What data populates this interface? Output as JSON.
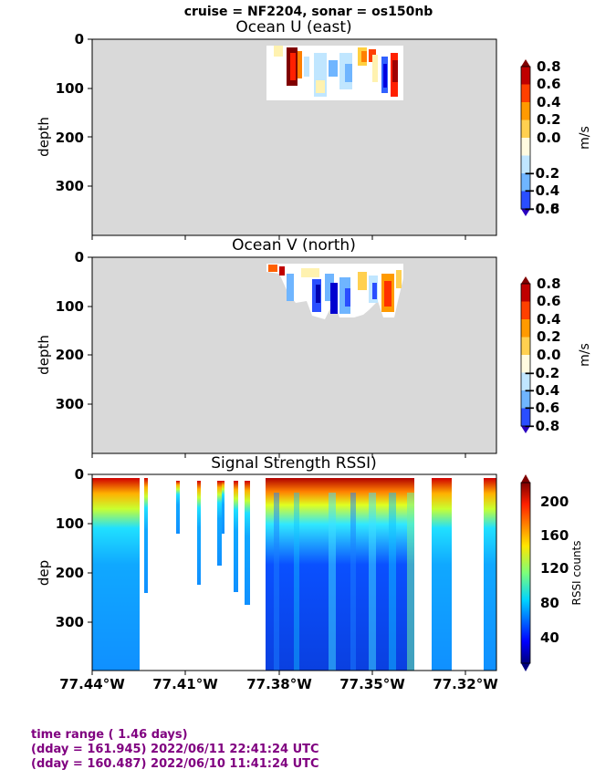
{
  "figure_title": "cruise = NF2204,  sonar = os150nb",
  "chart_data": [
    {
      "type": "heatmap",
      "title": "Ocean U (east)",
      "ylabel": "depth",
      "yticks": [
        "0",
        "100",
        "200",
        "300"
      ],
      "ylim": [
        0,
        400
      ],
      "colorbar_label": "m/s",
      "colorbar_ticks": [
        "0.8",
        "0.6",
        "0.4",
        "0.2",
        "0.0",
        "−0.2",
        "−0.4",
        "−0.6",
        "−0.8"
      ],
      "background": "#d9d9d9"
    },
    {
      "type": "heatmap",
      "title": "Ocean V (north)",
      "ylabel": "depth",
      "yticks": [
        "0",
        "100",
        "200",
        "300"
      ],
      "ylim": [
        0,
        400
      ],
      "colorbar_label": "m/s",
      "colorbar_ticks": [
        "0.8",
        "0.6",
        "0.4",
        "0.2",
        "0.0",
        "−0.2",
        "−0.4",
        "−0.6",
        "−0.8"
      ],
      "background": "#d9d9d9"
    },
    {
      "type": "heatmap",
      "title": "Signal Strength RSSI)",
      "ylabel": "dep",
      "yticks": [
        "0",
        "100",
        "200",
        "300"
      ],
      "ylim": [
        0,
        400
      ],
      "xticks": [
        "77.44°W",
        "77.41°W",
        "77.38°W",
        "77.35°W",
        "77.32°W"
      ],
      "colorbar_label": "RSSI counts",
      "colorbar_ticks": [
        "200",
        "160",
        "120",
        "80",
        "40"
      ]
    }
  ],
  "footer": {
    "line1": "time range ( 1.46 days)",
    "line2": "(dday = 161.945) 2022/06/11 22:41:24 UTC",
    "line3": "(dday = 160.487) 2022/06/10 11:41:24 UTC"
  }
}
